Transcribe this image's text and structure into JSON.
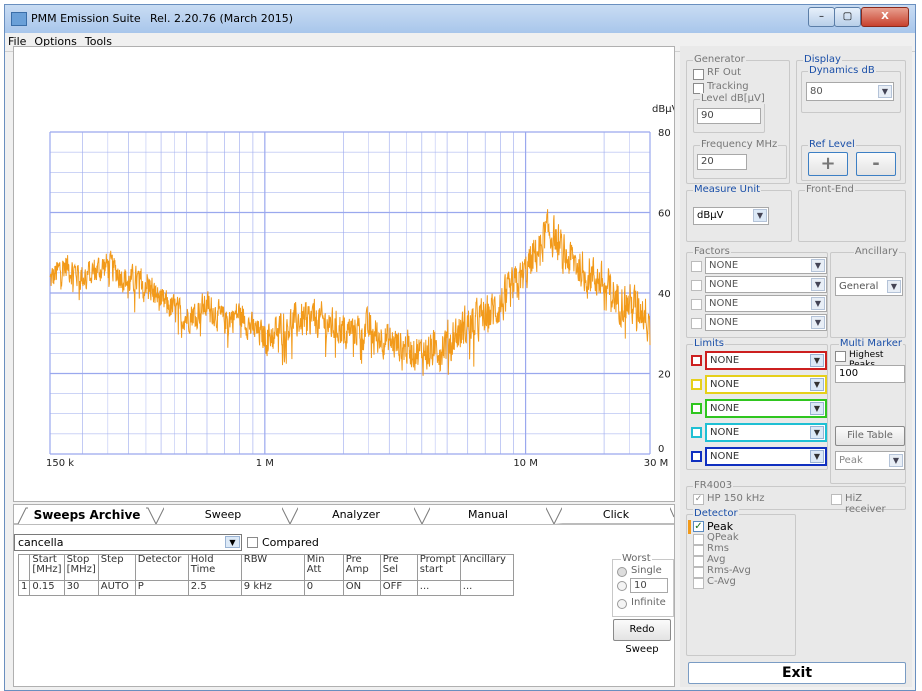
{
  "window": {
    "app_title": "PMM Emission Suite",
    "release": "Rel. 2.20.76 (March 2015)",
    "minimize_label": "–",
    "maximize_label": "▢",
    "close_label": "X"
  },
  "menu": {
    "items": [
      "File",
      "Options",
      "Tools"
    ]
  },
  "plot": {
    "unit_label": "dBµV",
    "y_ticks": [
      "80",
      "60",
      "40",
      "20",
      "0"
    ],
    "x_ticks": [
      "150 k",
      "1 M",
      "10 M",
      "30 M"
    ],
    "trace_color": "#f29a1a",
    "grid_color": "#9aa8ee"
  },
  "chart_data": {
    "type": "line",
    "x_scale": "log",
    "xlim_MHz": [
      0.15,
      30
    ],
    "ylim": [
      0,
      80
    ],
    "ylabel": "dBµV",
    "series": [
      {
        "x_MHz": [
          0.15,
          0.17,
          0.2,
          0.25,
          0.3,
          0.35,
          0.4,
          0.5,
          0.6,
          0.7,
          0.8,
          0.9,
          1.0,
          1.2,
          1.5,
          2.0,
          2.5,
          3.0,
          4.0,
          5.0,
          6.0,
          7.0,
          8.0,
          9.0,
          10.0,
          11.0,
          12.0,
          13.0,
          14.0,
          15.0,
          17.0,
          20.0,
          23.0,
          26.0,
          30.0
        ],
        "y": [
          43,
          47,
          44,
          47,
          43,
          43,
          38,
          34,
          37,
          33,
          35,
          31,
          29,
          32,
          34,
          31,
          31,
          28,
          25,
          28,
          32,
          34,
          37,
          41,
          45,
          50,
          55,
          54,
          49,
          48,
          46,
          42,
          38,
          37,
          35
        ]
      }
    ]
  },
  "tabs": [
    "Sweeps Archive",
    "Sweep",
    "Analyzer",
    "Manual",
    "Click"
  ],
  "archive": {
    "select_value": "cancella",
    "compared_label": "Compared",
    "columns": [
      "",
      "Start [MHz]",
      "Stop [MHz]",
      "Step",
      "Detector",
      "Hold Time",
      "RBW",
      "Min Att",
      "Pre Amp",
      "Pre Sel",
      "Prompt start",
      "Ancillary"
    ],
    "rows": [
      [
        "1",
        "0.15",
        "30",
        "AUTO",
        "P",
        "2.5",
        "9 kHz",
        "0",
        "ON",
        "OFF",
        "...",
        "..."
      ]
    ],
    "worst": {
      "label": "Worst",
      "single_label": "Single",
      "value": "10",
      "infinite_label": "Infinite"
    },
    "redo_label": "Redo Sweep"
  },
  "generator": {
    "label": "Generator",
    "rf_out": "RF Out",
    "tracking": "Tracking",
    "level_label": "Level dB[µV]",
    "level_value": "90",
    "freq_label": "Frequency MHz",
    "freq_value": "20"
  },
  "display": {
    "label": "Display",
    "dynamics_label": "Dynamics dB",
    "dynamics_value": "80",
    "ref_level_label": "Ref Level",
    "plus": "+",
    "minus": "-"
  },
  "measure_unit": {
    "label": "Measure Unit",
    "value": "dBµV"
  },
  "front_end": {
    "label": "Front-End"
  },
  "factors": {
    "label": "Factors",
    "values": [
      "NONE",
      "NONE",
      "NONE",
      "NONE"
    ]
  },
  "ancillary": {
    "label": "Ancillary",
    "value": "General"
  },
  "limits": {
    "label": "Limits",
    "values": [
      "NONE",
      "NONE",
      "NONE",
      "NONE",
      "NONE"
    ],
    "colors": [
      "#cc1f1f",
      "#e6d01a",
      "#2fc61f",
      "#1fc0d4",
      "#1030c0"
    ]
  },
  "multi_marker": {
    "label": "Multi Marker",
    "highest_label": "Highest Peaks",
    "value": "100",
    "file_table_label": "File Table",
    "peak_value": "Peak"
  },
  "fr4003": {
    "label": "FR4003",
    "hp_label": "HP 150 kHz",
    "hiz_label": "HiZ receiver"
  },
  "detector": {
    "label": "Detector",
    "options": [
      "Peak",
      "QPeak",
      "Rms",
      "Avg",
      "Rms-Avg",
      "C-Avg"
    ]
  },
  "exit_label": "Exit"
}
